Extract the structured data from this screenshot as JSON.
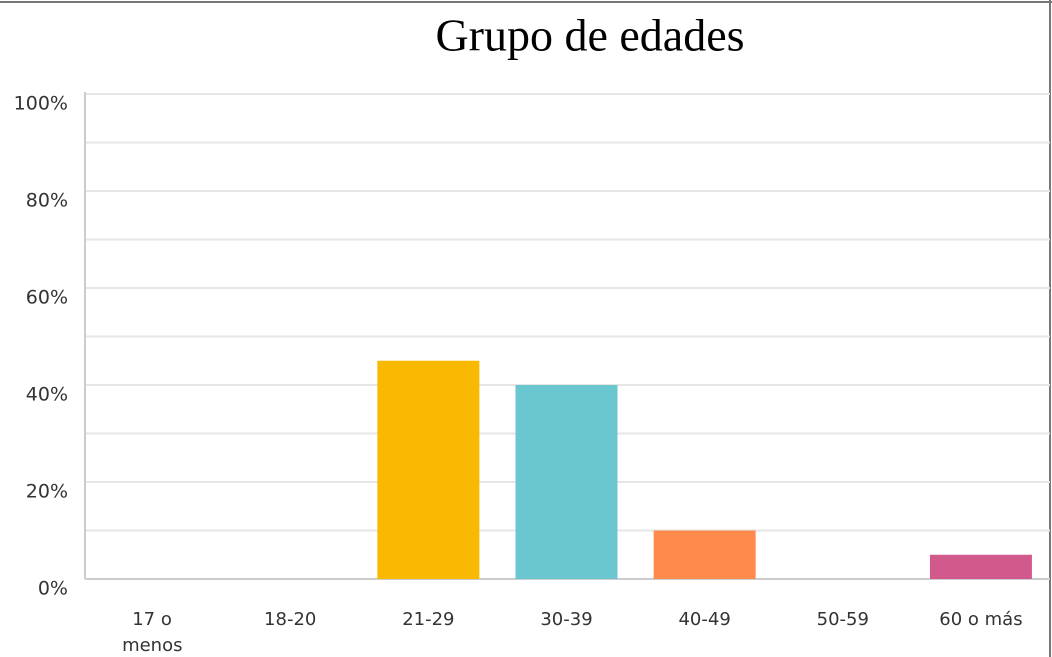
{
  "chart_data": {
    "type": "bar",
    "title": "Grupo de edades",
    "categories": [
      "17 o menos",
      "18-20",
      "21-29",
      "30-39",
      "40-49",
      "50-59",
      "60 o más"
    ],
    "values": [
      0,
      0,
      45,
      40,
      10,
      0,
      5
    ],
    "colors": [
      "#9e9e9e",
      "#9e9e9e",
      "#f9b900",
      "#6ac6cf",
      "#ff8a4c",
      "#9e9e9e",
      "#d2598c"
    ],
    "ylim": [
      0,
      100
    ],
    "yticks": [
      {
        "value": 0,
        "label": "0%"
      },
      {
        "value": 20,
        "label": "20%"
      },
      {
        "value": 40,
        "label": "40%"
      },
      {
        "value": 60,
        "label": "60%"
      },
      {
        "value": 80,
        "label": "80%"
      },
      {
        "value": 100,
        "label": "100%"
      }
    ],
    "minor_yticks": [
      10,
      30,
      50,
      70,
      90
    ],
    "grid": true
  }
}
